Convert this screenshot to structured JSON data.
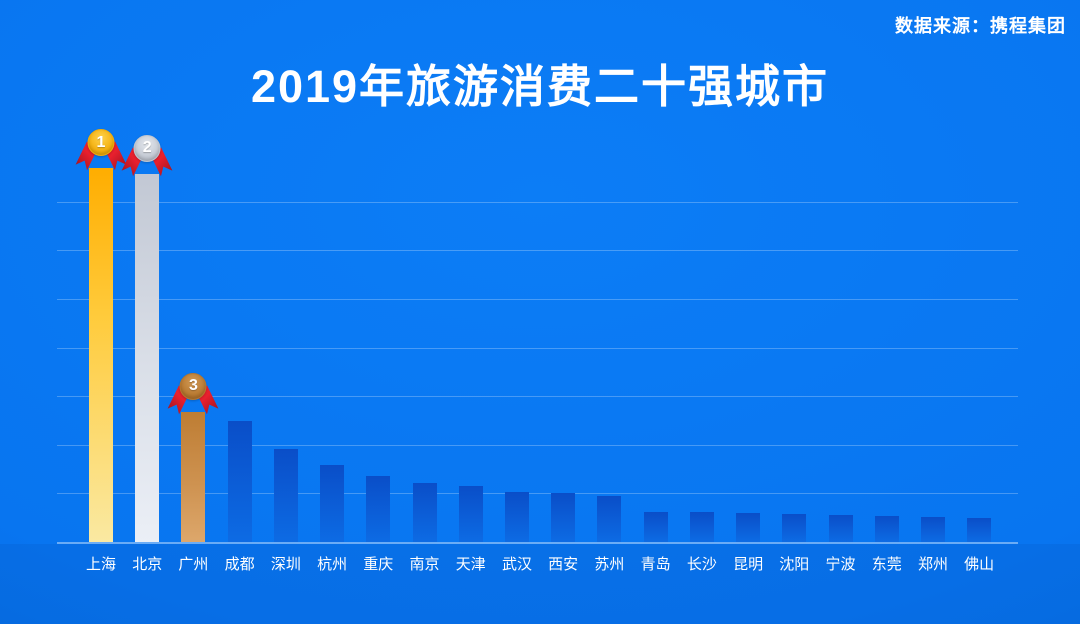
{
  "header": {
    "source": "数据来源：携程集团"
  },
  "chart_data": {
    "type": "bar",
    "title": "2019年旅游消费二十强城市",
    "categories": [
      "上海",
      "北京",
      "广州",
      "成都",
      "深圳",
      "杭州",
      "重庆",
      "南京",
      "天津",
      "武汉",
      "西安",
      "苏州",
      "青岛",
      "长沙",
      "昆明",
      "沈阳",
      "宁波",
      "东莞",
      "郑州",
      "佛山"
    ],
    "values_relative_pct": [
      100,
      98.4,
      34.8,
      32.4,
      24.9,
      20.6,
      17.6,
      15.8,
      15.0,
      13.4,
      13.1,
      12.3,
      8.0,
      7.9,
      7.8,
      7.5,
      7.2,
      7.0,
      6.7,
      6.4
    ],
    "value_axis_note": "no numeric axis or data labels shown; values estimated as percent of tallest bar (上海 = 100)",
    "xlabel": "",
    "ylabel": "",
    "ylim": [
      0,
      100
    ],
    "grid": true,
    "gridline_count": 7,
    "legend": "none",
    "medals": [
      {
        "rank": 1,
        "city": "上海",
        "style": "gold"
      },
      {
        "rank": 2,
        "city": "北京",
        "style": "silver"
      },
      {
        "rank": 3,
        "city": "广州",
        "style": "bronze"
      }
    ]
  },
  "colors": {
    "background": "#0875F0",
    "background_light": "#0C7DF6",
    "background_dark": "#0561D6",
    "below_axis_shade": "rgba(0,40,120,0.08)",
    "grid_line": "rgba(255,255,255,0.25)",
    "axis_line": "rgba(255,255,255,0.40)",
    "text": "#FFFFFF",
    "bar_blue_top": "#0A4EC8",
    "bar_blue_bottom": "#0D6BE4",
    "bar_gold_top": "#FFAD00",
    "bar_gold_mid": "#FFCB3C",
    "bar_gold_bottom": "#FAE9A2",
    "bar_silver_top": "#C2C8D4",
    "bar_silver_mid": "#D9DEE7",
    "bar_silver_bottom": "#EBEFF6",
    "bar_bronze_top": "#BE7D33",
    "bar_bronze_mid": "#CE9250",
    "bar_bronze_bottom": "#DDA76B",
    "medal_gold": "#F2AC0A",
    "medal_gold_light": "#FFD24A",
    "medal_silver": "#BFC5CF",
    "medal_silver_light": "#E3E7ED",
    "medal_bronze": "#B5762E",
    "medal_bronze_light": "#D29A55",
    "ribbon_red": "#E8202E",
    "ribbon_red_dark": "#A81420"
  }
}
